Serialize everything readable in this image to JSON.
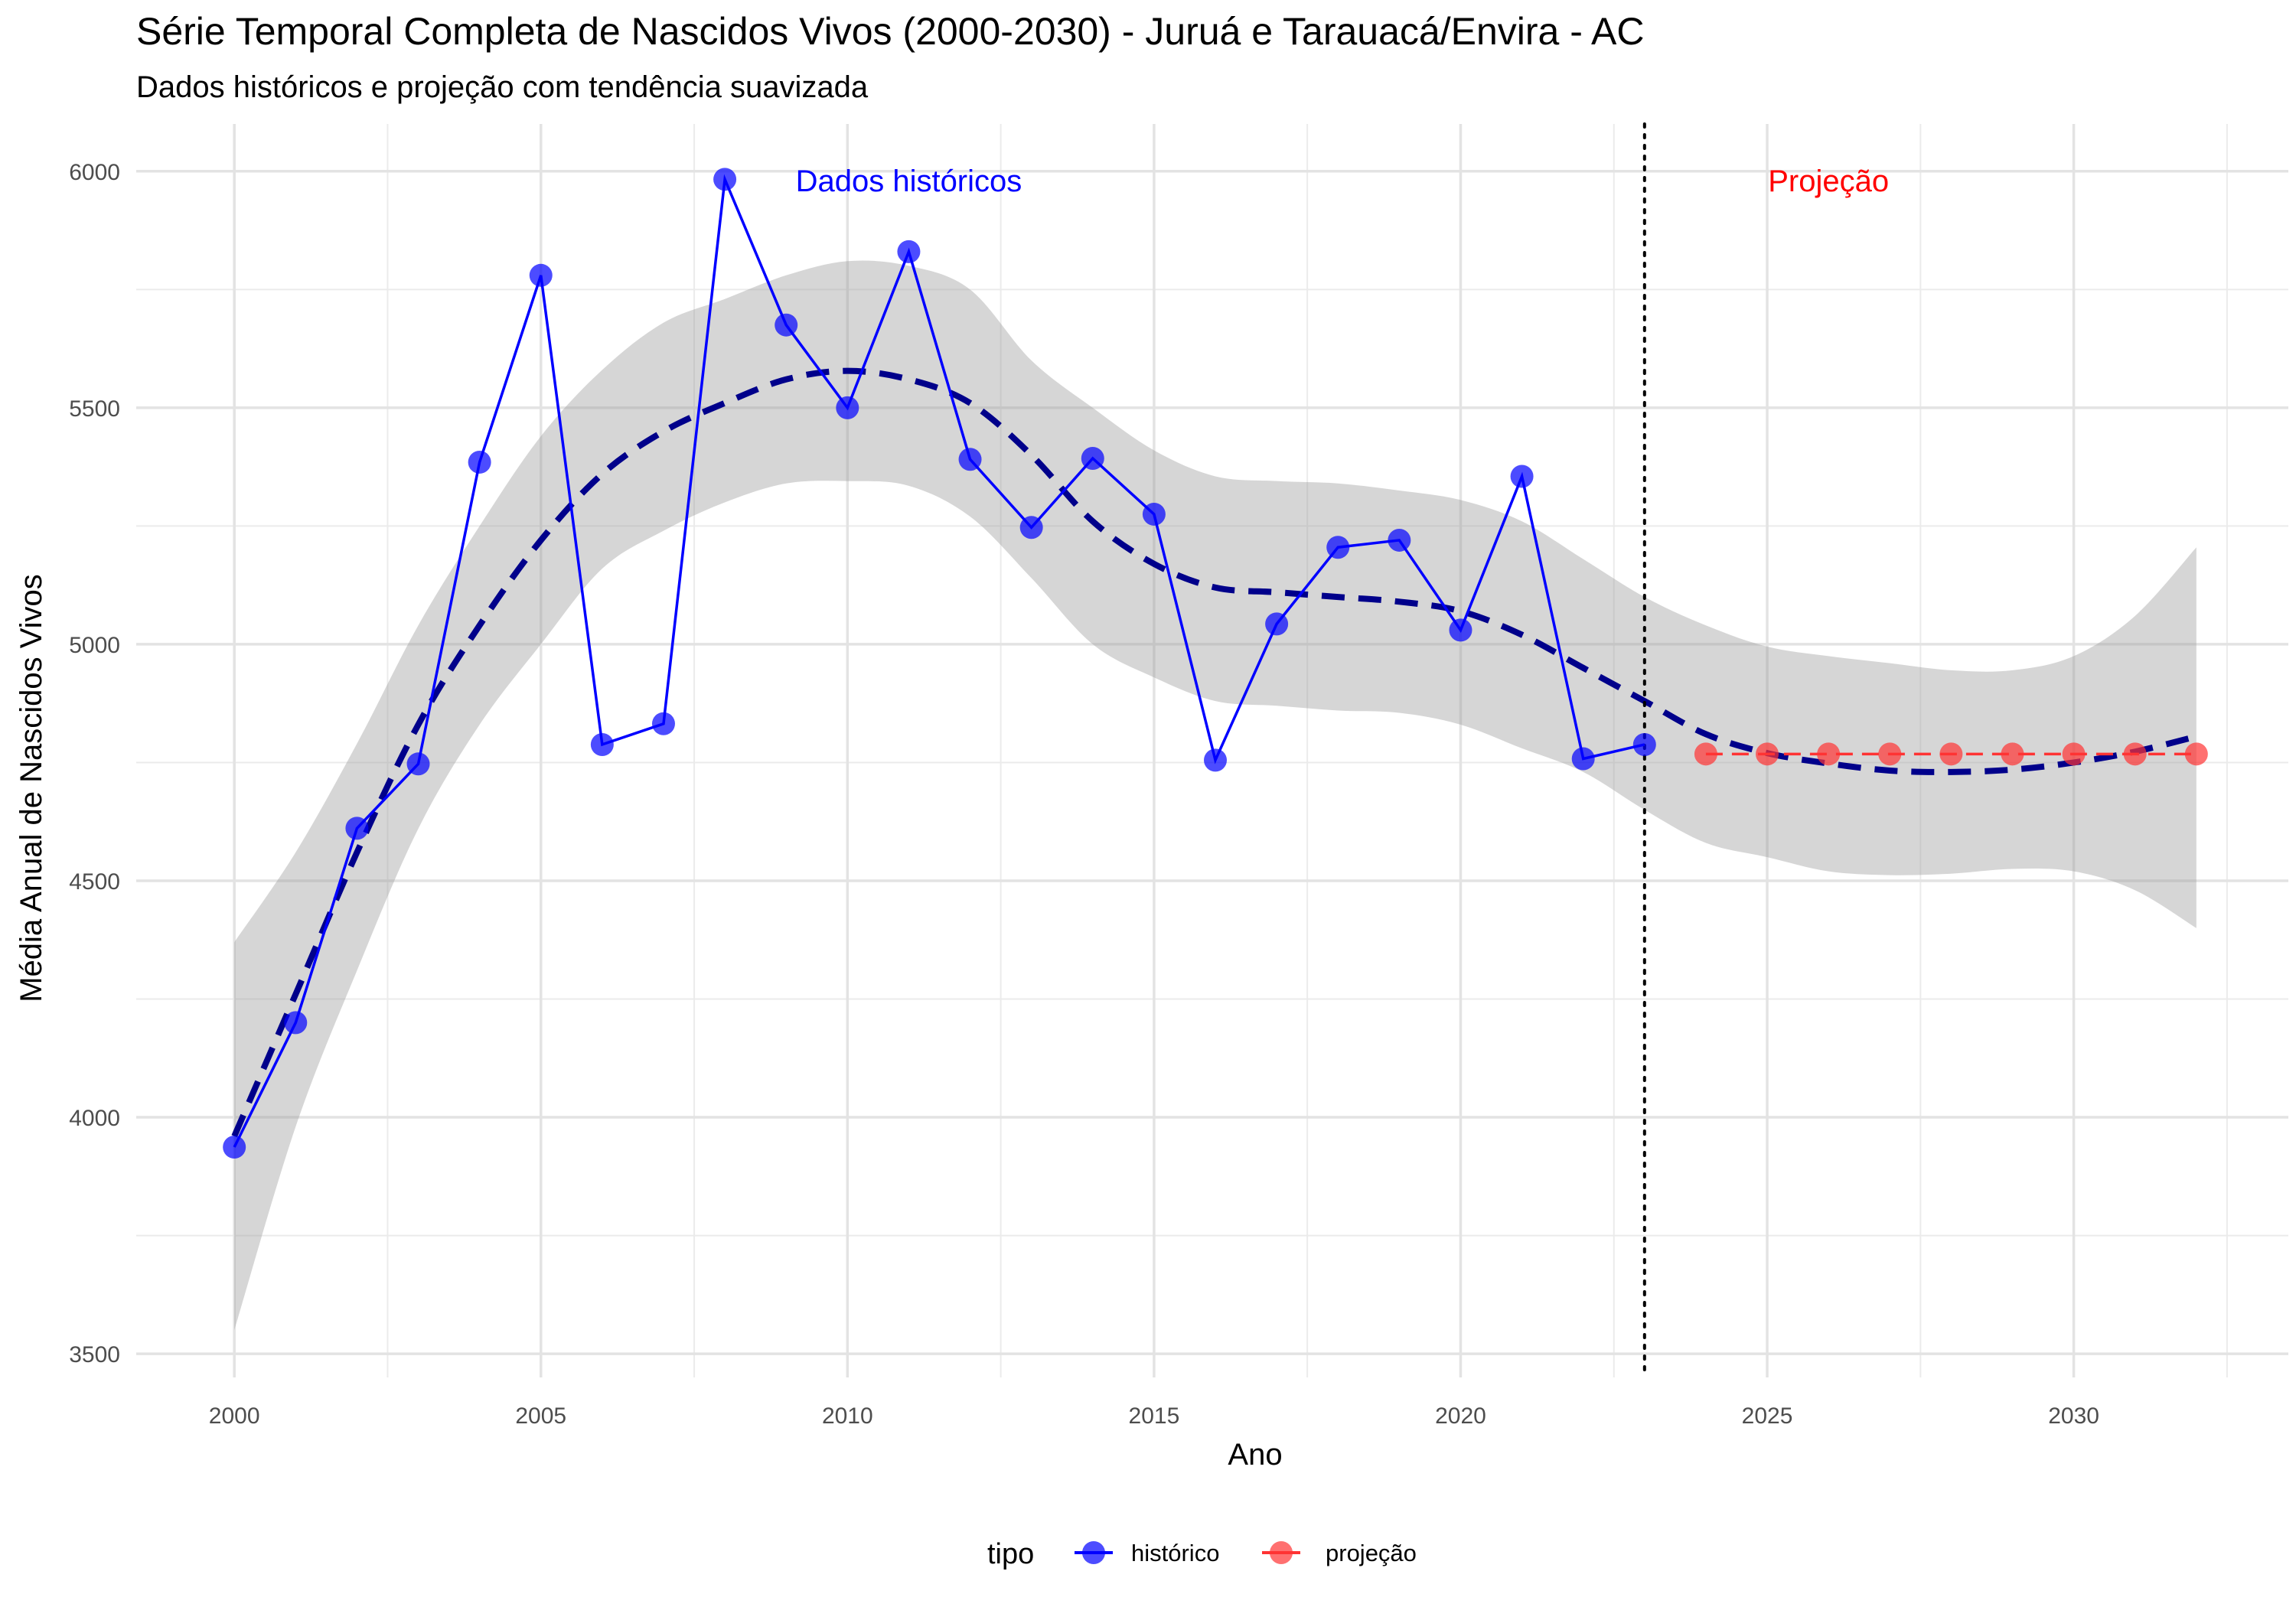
{
  "chart_data": {
    "type": "line",
    "title": "Série Temporal Completa de Nascidos Vivos (2000-2030) -  Juruá e Tarauacá/Envira - AC",
    "subtitle": "Dados históricos e projeção com tendência suavizada",
    "xlabel": "Ano",
    "ylabel": "Média Anual de Nascidos Vivos",
    "xlim": [
      1998.4,
      2033.5
    ],
    "ylim": [
      3450,
      6100
    ],
    "x_ticks": [
      2000,
      2005,
      2010,
      2015,
      2020,
      2025,
      2030
    ],
    "y_ticks": [
      3500,
      4000,
      4500,
      5000,
      5500,
      6000
    ],
    "grid": true,
    "legend": {
      "title": "tipo",
      "placement": "bottom",
      "entries": [
        {
          "label": "histórico",
          "color": "#0000ff"
        },
        {
          "label": "projeção",
          "color": "#ff3333"
        }
      ]
    },
    "vline": {
      "x": 2023,
      "style": "dotted",
      "color": "#000000"
    },
    "annotations": [
      {
        "text": "Dados históricos",
        "x": 2011,
        "y": 5980,
        "color": "#0000ff"
      },
      {
        "text": "Projeção",
        "x": 2026,
        "y": 5980,
        "color": "#ff0000"
      }
    ],
    "series": [
      {
        "name": "histórico",
        "color": "#0000ff",
        "x": [
          2000,
          2001,
          2002,
          2003,
          2004,
          2005,
          2006,
          2007,
          2008,
          2009,
          2010,
          2011,
          2012,
          2013,
          2014,
          2015,
          2016,
          2017,
          2018,
          2019,
          2020,
          2021,
          2022,
          2023
        ],
        "y": [
          3937,
          4200,
          4611,
          4747,
          5385,
          5780,
          4788,
          4832,
          5983,
          5675,
          5500,
          5830,
          5391,
          5247,
          5393,
          5275,
          4755,
          5043,
          5205,
          5220,
          5030,
          5355,
          4758,
          4788
        ]
      },
      {
        "name": "projeção",
        "color": "#ff3333",
        "x": [
          2024,
          2025,
          2026,
          2027,
          2028,
          2029,
          2030,
          2031,
          2032
        ],
        "y": [
          4768,
          4768,
          4768,
          4768,
          4768,
          4768,
          4768,
          4768,
          4768
        ]
      }
    ],
    "trend": {
      "color": "#00008b",
      "style": "dashed",
      "x": [
        2000,
        2001,
        2002,
        2003,
        2004,
        2005,
        2006,
        2007,
        2008,
        2009,
        2010,
        2011,
        2012,
        2013,
        2014,
        2015,
        2016,
        2017,
        2018,
        2019,
        2020,
        2021,
        2022,
        2023,
        2024,
        2025,
        2026,
        2027,
        2028,
        2029,
        2030,
        2031,
        2032
      ],
      "y": [
        3960,
        4260,
        4560,
        4830,
        5040,
        5220,
        5360,
        5450,
        5510,
        5560,
        5578,
        5560,
        5510,
        5400,
        5260,
        5170,
        5120,
        5110,
        5100,
        5090,
        5070,
        5020,
        4950,
        4880,
        4810,
        4770,
        4748,
        4733,
        4730,
        4735,
        4750,
        4773,
        4805
      ],
      "ci_lower": [
        3550,
        3980,
        4310,
        4610,
        4830,
        5000,
        5160,
        5240,
        5300,
        5340,
        5345,
        5335,
        5270,
        5140,
        5000,
        4930,
        4880,
        4870,
        4860,
        4855,
        4830,
        4780,
        4730,
        4650,
        4580,
        4550,
        4520,
        4512,
        4515,
        4525,
        4520,
        4480,
        4400
      ],
      "ci_upper": [
        4370,
        4560,
        4790,
        5040,
        5250,
        5440,
        5580,
        5680,
        5730,
        5780,
        5810,
        5800,
        5750,
        5600,
        5500,
        5410,
        5355,
        5345,
        5340,
        5325,
        5305,
        5260,
        5180,
        5100,
        5040,
        4995,
        4975,
        4960,
        4945,
        4945,
        4975,
        5060,
        5205
      ]
    }
  }
}
